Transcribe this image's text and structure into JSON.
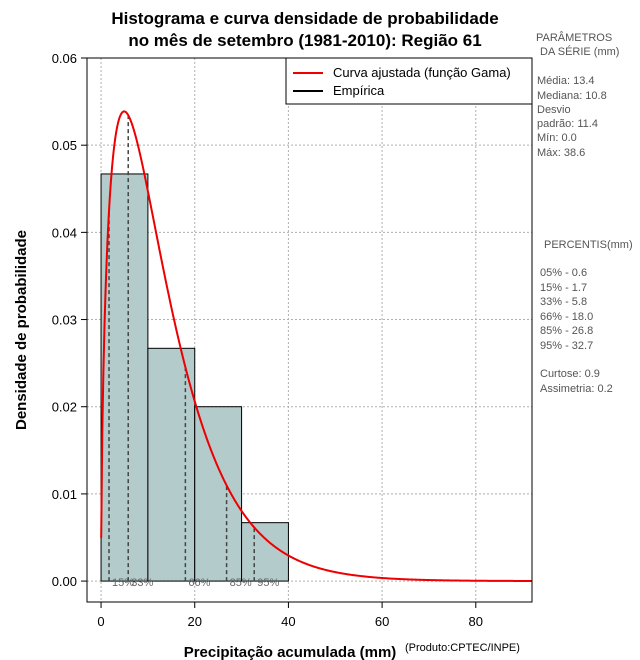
{
  "chart_data": {
    "type": "histogram",
    "title_line1": "Histograma e curva densidade de probabilidade",
    "title_line2": "no mês de setembro (1981-2010): Região 61",
    "xlabel": "Precipitação acumulada (mm)",
    "ylabel": "Densidade de probabilidade",
    "credit": "(Produto:CPTEC/INPE)",
    "xlim": [
      -3,
      92
    ],
    "ylim": [
      -0.0024,
      0.06
    ],
    "xticks": [
      0,
      20,
      40,
      60,
      80
    ],
    "yticks": [
      0.0,
      0.01,
      0.02,
      0.03,
      0.04,
      0.05,
      0.06
    ],
    "ytick_labels": [
      "0.00",
      "0.01",
      "0.02",
      "0.03",
      "0.04",
      "0.05",
      "0.06"
    ],
    "bins": [
      {
        "from": 0,
        "to": 10,
        "density": 0.0467
      },
      {
        "from": 10,
        "to": 20,
        "density": 0.0267
      },
      {
        "from": 20,
        "to": 30,
        "density": 0.02
      },
      {
        "from": 30,
        "to": 40,
        "density": 0.0067
      }
    ],
    "gamma_fit": {
      "shape": 1.58,
      "scale": 8.5,
      "x_max": 92
    },
    "percentile_lines": [
      {
        "x": 1.7,
        "label": "15%"
      },
      {
        "x": 5.8,
        "label": "33%"
      },
      {
        "x": 18.0,
        "label": "66%"
      },
      {
        "x": 26.8,
        "label": "85%"
      },
      {
        "x": 32.7,
        "label": "95%"
      }
    ],
    "legend": [
      {
        "label": "Curva ajustada (função Gama)",
        "color": "#ee0000"
      },
      {
        "label": "Empírica",
        "color": "#000000"
      }
    ],
    "colors": {
      "bar_fill": "#b3cbcb",
      "curve": "#ee0000",
      "grid": "#b0b0b0"
    }
  },
  "side_panel": {
    "parametros_line1": "PARÂMETROS",
    "parametros_line2": "DA SÉRIE (mm)",
    "params": [
      "Média:  13.4",
      "Mediana:  10.8",
      "Desvio",
      "padrão:  11.4",
      "Mín:  0.0",
      "Máx:  38.6"
    ],
    "percentis_title": "PERCENTIS(mm)",
    "percentis": [
      "05% -   0.6",
      "15% -   1.7",
      "33% -   5.8",
      "66% -   18.0",
      "85% -   26.8",
      "95% -   32.7"
    ],
    "stats": [
      "Curtose:  0.9",
      "Assimetria:  0.2"
    ]
  }
}
